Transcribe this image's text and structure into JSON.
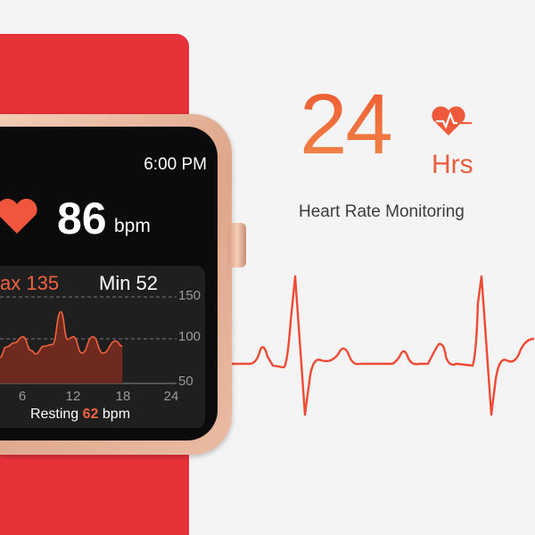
{
  "watch": {
    "time": "6:00 PM",
    "heart_rate": "86",
    "heart_rate_unit": "bpm",
    "max_label": "ax 135",
    "min_label": "Min 52",
    "resting_prefix": "Resting",
    "resting_value": "62",
    "resting_unit": "bpm",
    "y_ticks": [
      "150",
      "100",
      "50"
    ],
    "x_ticks": [
      "6",
      "12",
      "18",
      "24"
    ]
  },
  "chart_data": {
    "type": "area",
    "x": [
      3,
      4,
      5,
      6,
      7,
      7.5,
      8.5,
      9.5,
      10.5,
      11.3,
      12,
      13,
      14.3,
      15.5,
      17,
      17.8
    ],
    "values": [
      80,
      92,
      97,
      104,
      88,
      84,
      93,
      95,
      133,
      101,
      104,
      85,
      104,
      85,
      99,
      93
    ],
    "xlim": [
      0,
      24
    ],
    "ylim": [
      50,
      150
    ],
    "x_ticks": [
      6,
      12,
      18,
      24
    ],
    "y_ticks": [
      50,
      100,
      150
    ],
    "grid": "dashed horizontal",
    "color": "#f2623f"
  },
  "promo": {
    "big_number": "24",
    "unit": "Hrs",
    "title": "Heart Rate Monitoring",
    "accent": "#ee6a3c",
    "strap_color": "#e8323a",
    "icon": "heart-pulse-icon"
  }
}
